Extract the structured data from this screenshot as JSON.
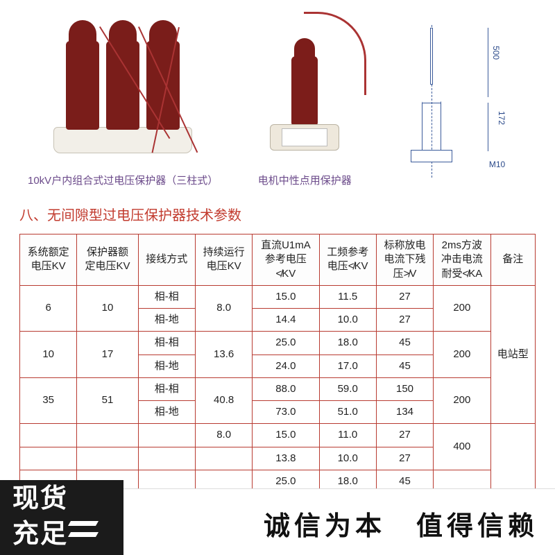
{
  "products": {
    "triple": {
      "caption": "10kV户内组合式过电压保护器（三柱式）"
    },
    "neutral": {
      "caption": "电机中性点用保护器"
    },
    "tech_drawing": {
      "dim_top": "500",
      "dim_mid": "172",
      "dim_bolt": "M10"
    }
  },
  "section_title": "八、无间隙型过电压保护器技术参数",
  "table": {
    "headers": [
      "系统额定\n电压KV",
      "保护器额\n定电压KV",
      "接线方式",
      "持续运行\n电压KV",
      "直流U1mA\n参考电压\n≮KV",
      "工频参考\n电压≮KV",
      "标称放电\n电流下残\n压≯V",
      "2ms方波\n冲击电流\n耐受≮KA",
      "备注"
    ],
    "rows": [
      {
        "sys": "6",
        "rated": "10",
        "mode": "相-相",
        "cont": "8.0",
        "dc": "15.0",
        "pf": "11.5",
        "res": "27",
        "wave": "200",
        "note": "电站型"
      },
      {
        "sys": "",
        "rated": "",
        "mode": "相-地",
        "cont": "",
        "dc": "14.4",
        "pf": "10.0",
        "res": "27",
        "wave": "",
        "note": ""
      },
      {
        "sys": "10",
        "rated": "17",
        "mode": "相-相",
        "cont": "13.6",
        "dc": "25.0",
        "pf": "18.0",
        "res": "45",
        "wave": "200",
        "note": ""
      },
      {
        "sys": "",
        "rated": "",
        "mode": "相-地",
        "cont": "",
        "dc": "24.0",
        "pf": "17.0",
        "res": "45",
        "wave": "",
        "note": ""
      },
      {
        "sys": "35",
        "rated": "51",
        "mode": "相-相",
        "cont": "40.8",
        "dc": "88.0",
        "pf": "59.0",
        "res": "150",
        "wave": "200",
        "note": ""
      },
      {
        "sys": "",
        "rated": "",
        "mode": "相-地",
        "cont": "",
        "dc": "73.0",
        "pf": "51.0",
        "res": "134",
        "wave": "",
        "note": ""
      },
      {
        "sys": "",
        "rated": "",
        "mode": "",
        "cont": "8.0",
        "dc": "15.0",
        "pf": "11.0",
        "res": "27",
        "wave": "400",
        "note": ""
      },
      {
        "sys": "",
        "rated": "",
        "mode": "",
        "cont": "",
        "dc": "13.8",
        "pf": "10.0",
        "res": "27",
        "wave": "",
        "note": ""
      },
      {
        "sys": "",
        "rated": "",
        "mode": "",
        "cont": "",
        "dc": "25.0",
        "pf": "18.0",
        "res": "45",
        "wave": "",
        "note": ""
      }
    ],
    "rowspans": {
      "sys": [
        2,
        0,
        2,
        0,
        2,
        0,
        1,
        1,
        1
      ],
      "rated": [
        2,
        0,
        2,
        0,
        2,
        0,
        1,
        1,
        1
      ],
      "cont": [
        2,
        0,
        2,
        0,
        2,
        0,
        1,
        1,
        1
      ],
      "wave": [
        2,
        0,
        2,
        0,
        2,
        0,
        2,
        0,
        1
      ],
      "note": [
        6,
        0,
        0,
        0,
        0,
        0,
        3,
        0,
        0
      ]
    },
    "border_color": "#b83a30"
  },
  "badge": {
    "line1": "现货",
    "line2": "充足"
  },
  "slogan": "诚信为本　值得信赖"
}
